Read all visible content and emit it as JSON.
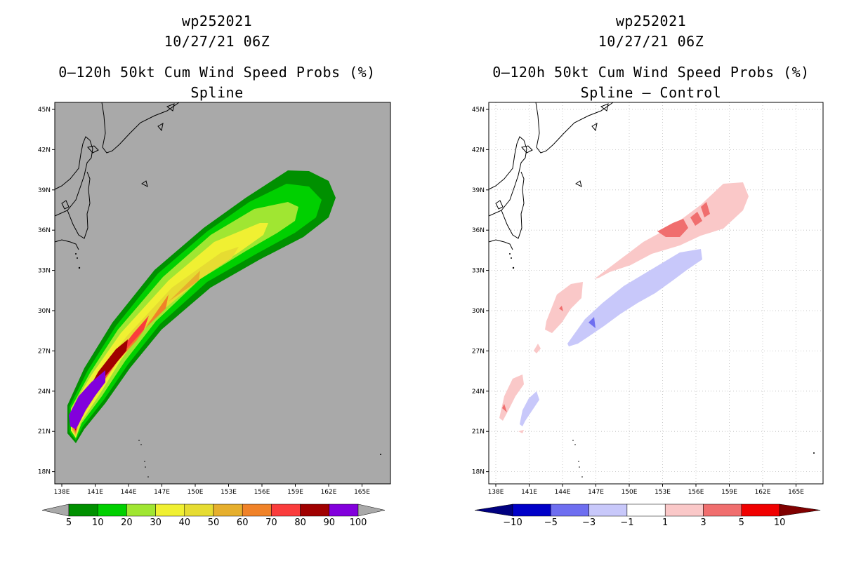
{
  "left_panel": {
    "title_line1": "wp252021",
    "title_line2": "10/27/21 06Z",
    "title_line3": "0–120h 50kt Cum Wind Speed Probs (%)",
    "title_line4": "Spline",
    "colorbar": {
      "labels": [
        "5",
        "10",
        "20",
        "30",
        "40",
        "50",
        "60",
        "70",
        "80",
        "90",
        "100"
      ],
      "colors": [
        "#009000",
        "#00d000",
        "#a0e632",
        "#f0f032",
        "#e6dc32",
        "#e6af2d",
        "#f08228",
        "#fa3c3c",
        "#a00000",
        "#8200dc"
      ]
    }
  },
  "right_panel": {
    "title_line1": "wp252021",
    "title_line2": "10/27/21 06Z",
    "title_line3": "0–120h 50kt Cum Wind Speed Probs (%)",
    "title_line4": "Spline – Control",
    "colorbar": {
      "labels": [
        "−10",
        "−5",
        "−3",
        "−1",
        "1",
        "3",
        "5",
        "10"
      ],
      "colors": [
        "#0000c8",
        "#6e6ef0",
        "#c8c8fa",
        "#ffffff",
        "#fac8c8",
        "#f06e6e",
        "#f00000"
      ],
      "end_colors": [
        "#000080",
        "#800000"
      ]
    }
  },
  "map": {
    "lat_labels": [
      "45N",
      "42N",
      "39N",
      "36N",
      "33N",
      "30N",
      "27N",
      "24N",
      "21N",
      "18N"
    ],
    "lon_labels": [
      "138E",
      "141E",
      "144E",
      "147E",
      "150E",
      "153E",
      "156E",
      "159E",
      "162E",
      "165E"
    ],
    "background_color": "#a9a9a9"
  }
}
